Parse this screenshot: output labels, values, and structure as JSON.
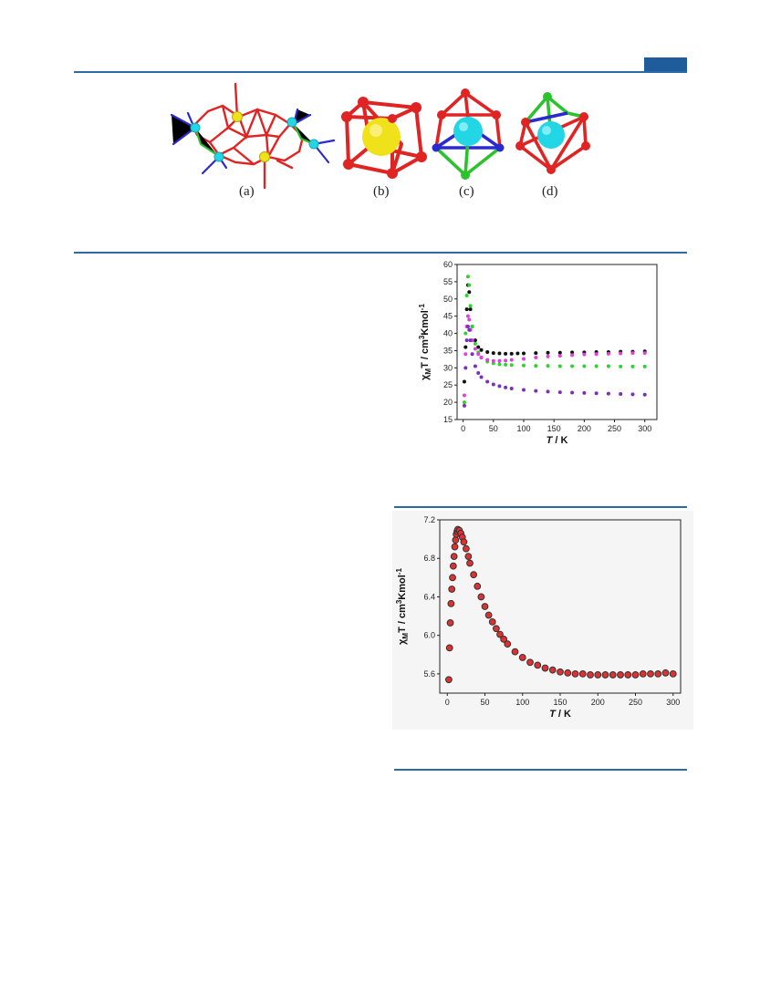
{
  "header": {
    "accent_color": "#1f5c9c"
  },
  "figure_top": {
    "panels": [
      {
        "label": "(a)",
        "sphere_color": "#f0e21a"
      },
      {
        "label": "(b)",
        "sphere_color": "#f0e21a"
      },
      {
        "label": "(c)",
        "sphere_color": "#22d6e6"
      },
      {
        "label": "(d)",
        "sphere_color": "#22d6e6"
      }
    ],
    "colors": {
      "oxygen": "#e02424",
      "metal": "#f0e21a",
      "dy": "#22d6e6",
      "nitrogen": "#2a2ad0",
      "green": "#2cc22c"
    }
  },
  "chart_data": [
    {
      "type": "scatter",
      "title": "",
      "xlabel": "T / K",
      "ylabel": "χMT / cm3Kmol-1",
      "xlim": [
        -10,
        320
      ],
      "ylim": [
        15,
        60
      ],
      "xticks": [
        "0",
        "50",
        "100",
        "150",
        "200",
        "250",
        "300"
      ],
      "yticks": [
        "15",
        "20",
        "25",
        "30",
        "35",
        "40",
        "45",
        "50",
        "55",
        "60"
      ],
      "series": [
        {
          "color": "#111111",
          "points": [
            [
              2,
              26
            ],
            [
              4,
              36
            ],
            [
              6,
              47
            ],
            [
              8,
              54
            ],
            [
              10,
              52
            ],
            [
              12,
              47
            ],
            [
              15,
              42
            ],
            [
              20,
              38
            ],
            [
              25,
              36
            ],
            [
              30,
              35.2
            ],
            [
              40,
              34.6
            ],
            [
              50,
              34.3
            ],
            [
              60,
              34.2
            ],
            [
              70,
              34.1
            ],
            [
              80,
              34.1
            ],
            [
              90,
              34.2
            ],
            [
              100,
              34.2
            ],
            [
              120,
              34.3
            ],
            [
              140,
              34.4
            ],
            [
              160,
              34.4
            ],
            [
              180,
              34.5
            ],
            [
              200,
              34.5
            ],
            [
              220,
              34.6
            ],
            [
              240,
              34.6
            ],
            [
              260,
              34.7
            ],
            [
              280,
              34.7
            ],
            [
              300,
              34.8
            ]
          ]
        },
        {
          "color": "#2cd42c",
          "points": [
            [
              2,
              20
            ],
            [
              4,
              40
            ],
            [
              6,
              51
            ],
            [
              8,
              56.5
            ],
            [
              10,
              54
            ],
            [
              12,
              48
            ],
            [
              15,
              42
            ],
            [
              20,
              37
            ],
            [
              25,
              34.5
            ],
            [
              30,
              33
            ],
            [
              40,
              31.8
            ],
            [
              50,
              31.3
            ],
            [
              60,
              31
            ],
            [
              70,
              30.9
            ],
            [
              80,
              30.8
            ],
            [
              100,
              30.7
            ],
            [
              120,
              30.6
            ],
            [
              140,
              30.6
            ],
            [
              160,
              30.5
            ],
            [
              180,
              30.5
            ],
            [
              200,
              30.5
            ],
            [
              220,
              30.5
            ],
            [
              240,
              30.5
            ],
            [
              260,
              30.4
            ],
            [
              280,
              30.4
            ],
            [
              300,
              30.4
            ]
          ]
        },
        {
          "color": "#e040e0",
          "points": [
            [
              2,
              22
            ],
            [
              4,
              34
            ],
            [
              6,
              42
            ],
            [
              8,
              45
            ],
            [
              10,
              44
            ],
            [
              12,
              41
            ],
            [
              15,
              38
            ],
            [
              20,
              35.5
            ],
            [
              25,
              34
            ],
            [
              30,
              33
            ],
            [
              40,
              32.3
            ],
            [
              50,
              32
            ],
            [
              60,
              32
            ],
            [
              70,
              32.1
            ],
            [
              80,
              32.3
            ],
            [
              100,
              32.6
            ],
            [
              120,
              33
            ],
            [
              140,
              33.3
            ],
            [
              160,
              33.5
            ],
            [
              180,
              33.7
            ],
            [
              200,
              33.9
            ],
            [
              220,
              34
            ],
            [
              240,
              34.1
            ],
            [
              260,
              34.2
            ],
            [
              280,
              34.3
            ],
            [
              300,
              34.3
            ]
          ]
        },
        {
          "color": "#7a2fc0",
          "points": [
            [
              2,
              19
            ],
            [
              4,
              30
            ],
            [
              6,
              38
            ],
            [
              8,
              42
            ],
            [
              10,
              41
            ],
            [
              12,
              38
            ],
            [
              15,
              34
            ],
            [
              20,
              30.5
            ],
            [
              25,
              28.5
            ],
            [
              30,
              27.3
            ],
            [
              40,
              26
            ],
            [
              50,
              25.2
            ],
            [
              60,
              24.7
            ],
            [
              70,
              24.3
            ],
            [
              80,
              24
            ],
            [
              100,
              23.6
            ],
            [
              120,
              23.3
            ],
            [
              140,
              23.1
            ],
            [
              160,
              22.9
            ],
            [
              180,
              22.8
            ],
            [
              200,
              22.7
            ],
            [
              220,
              22.6
            ],
            [
              240,
              22.5
            ],
            [
              260,
              22.4
            ],
            [
              280,
              22.3
            ],
            [
              300,
              22.2
            ]
          ]
        }
      ]
    },
    {
      "type": "scatter",
      "title": "",
      "xlabel": "T / K",
      "ylabel": "χMT / cm3Kmol-1",
      "xlim": [
        -10,
        310
      ],
      "ylim": [
        5.4,
        7.2
      ],
      "xticks": [
        "0",
        "50",
        "100",
        "150",
        "200",
        "250",
        "300"
      ],
      "yticks": [
        "5.6",
        "6.0",
        "6.4",
        "6.8",
        "7.2"
      ],
      "series": [
        {
          "color": "#e03030",
          "points": [
            [
              2,
              5.54
            ],
            [
              3,
              5.87
            ],
            [
              4,
              6.13
            ],
            [
              5,
              6.33
            ],
            [
              6,
              6.48
            ],
            [
              7,
              6.6
            ],
            [
              8,
              6.72
            ],
            [
              9,
              6.82
            ],
            [
              10,
              6.92
            ],
            [
              11,
              6.99
            ],
            [
              12,
              7.05
            ],
            [
              13,
              7.08
            ],
            [
              14,
              7.1
            ],
            [
              16,
              7.09
            ],
            [
              18,
              7.06
            ],
            [
              20,
              7.02
            ],
            [
              22,
              6.97
            ],
            [
              25,
              6.9
            ],
            [
              28,
              6.82
            ],
            [
              30,
              6.75
            ],
            [
              35,
              6.63
            ],
            [
              40,
              6.51
            ],
            [
              45,
              6.4
            ],
            [
              50,
              6.3
            ],
            [
              55,
              6.21
            ],
            [
              60,
              6.14
            ],
            [
              65,
              6.07
            ],
            [
              70,
              6.01
            ],
            [
              75,
              5.96
            ],
            [
              80,
              5.91
            ],
            [
              90,
              5.83
            ],
            [
              100,
              5.77
            ],
            [
              110,
              5.72
            ],
            [
              120,
              5.69
            ],
            [
              130,
              5.66
            ],
            [
              140,
              5.64
            ],
            [
              150,
              5.62
            ],
            [
              160,
              5.61
            ],
            [
              170,
              5.6
            ],
            [
              180,
              5.6
            ],
            [
              190,
              5.59
            ],
            [
              200,
              5.59
            ],
            [
              210,
              5.59
            ],
            [
              220,
              5.59
            ],
            [
              230,
              5.59
            ],
            [
              240,
              5.59
            ],
            [
              250,
              5.59
            ],
            [
              260,
              5.6
            ],
            [
              270,
              5.6
            ],
            [
              280,
              5.6
            ],
            [
              290,
              5.61
            ],
            [
              300,
              5.6
            ]
          ]
        }
      ]
    }
  ]
}
